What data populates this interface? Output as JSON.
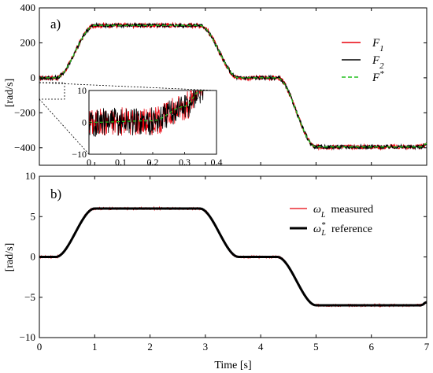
{
  "chart_data": [
    {
      "panel": "a)",
      "type": "line",
      "ylabel": "[rad/s]",
      "xlim": [
        0,
        7
      ],
      "ylim": [
        -500,
        400
      ],
      "yticks": [
        400,
        200,
        0,
        -200,
        -400
      ],
      "ytick_labels": [
        "400",
        "200",
        "0",
        "−200",
        "−400"
      ],
      "xticks": [
        0,
        1,
        2,
        3,
        4,
        5,
        6,
        7
      ],
      "profile": [
        [
          0,
          0
        ],
        [
          0.3,
          0
        ],
        [
          1.0,
          300
        ],
        [
          2.9,
          300
        ],
        [
          3.6,
          0
        ],
        [
          4.3,
          0
        ],
        [
          5.0,
          -395
        ],
        [
          6.9,
          -395
        ],
        [
          7.0,
          -375
        ]
      ],
      "series": [
        {
          "name_main": "F",
          "name_sub": "1",
          "color": "#e8000b",
          "style": "solid",
          "noise": 12
        },
        {
          "name_main": "F",
          "name_sub": "2",
          "color": "#000000",
          "style": "solid",
          "noise": 10
        },
        {
          "name_main": "F",
          "name_sup": "*",
          "color": "#22c11f",
          "style": "dashed",
          "noise": 0
        }
      ],
      "inset": {
        "xlim": [
          0,
          0.4
        ],
        "ylim": [
          -10,
          10
        ],
        "xticks": [
          0,
          0.1,
          0.2,
          0.3,
          0.4
        ],
        "xtick_labels": [
          "0",
          "0.1",
          "0.2",
          "0.3",
          "0.4"
        ],
        "yticks": [
          10,
          0,
          -10
        ],
        "ytick_labels": [
          "10",
          "0",
          "−10"
        ],
        "ref_profile": [
          [
            0,
            0
          ],
          [
            0.2,
            0.5
          ],
          [
            0.3,
            5
          ],
          [
            0.35,
            10
          ]
        ]
      }
    },
    {
      "panel": "b)",
      "type": "line",
      "xlabel": "Time [s]",
      "ylabel": "[rad/s]",
      "xlim": [
        0,
        7
      ],
      "ylim": [
        -10,
        10
      ],
      "yticks": [
        10,
        5,
        0,
        -5,
        -10
      ],
      "ytick_labels": [
        "10",
        "5",
        "0",
        "−5",
        "−10"
      ],
      "xticks": [
        0,
        1,
        2,
        3,
        4,
        5,
        6,
        7
      ],
      "xtick_labels": [
        "0",
        "1",
        "2",
        "3",
        "4",
        "5",
        "6",
        "7"
      ],
      "profile": [
        [
          0,
          0
        ],
        [
          0.3,
          0
        ],
        [
          1.0,
          6
        ],
        [
          2.9,
          6
        ],
        [
          3.6,
          0
        ],
        [
          4.3,
          0
        ],
        [
          5.0,
          -6
        ],
        [
          6.9,
          -6
        ],
        [
          7.0,
          -5.6
        ]
      ],
      "series": [
        {
          "name_main": "ω",
          "name_sub": "L",
          "suffix": "  measured",
          "color": "#e8000b",
          "width": 1,
          "noise": 0.15
        },
        {
          "name_main": "ω",
          "name_sub": "L",
          "name_sup": "*",
          "suffix": "  reference",
          "color": "#000000",
          "width": 3,
          "noise": 0
        }
      ]
    }
  ]
}
